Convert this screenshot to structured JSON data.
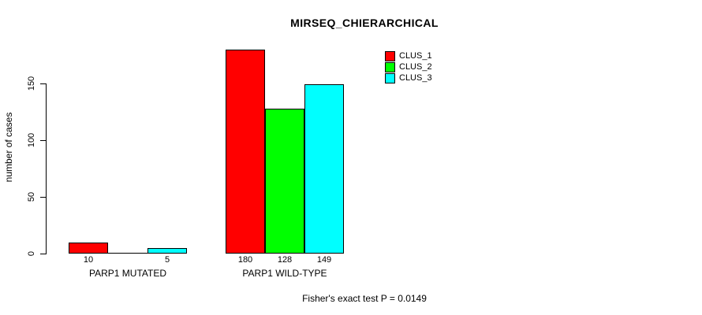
{
  "chart_data": {
    "type": "bar",
    "title": "MIRSEQ_CHIERARCHICAL",
    "xlabel": "",
    "ylabel": "number of cases",
    "categories": [
      "PARP1 MUTATED",
      "PARP1 WILD-TYPE"
    ],
    "series": [
      {
        "name": "CLUS_1",
        "color": "#ff0000",
        "values": [
          10,
          180
        ],
        "labels": [
          "10",
          "180"
        ]
      },
      {
        "name": "CLUS_2",
        "color": "#00ff00",
        "values": [
          0,
          128
        ],
        "labels": [
          "",
          "128"
        ]
      },
      {
        "name": "CLUS_3",
        "color": "#00ffff",
        "values": [
          5,
          149
        ],
        "labels": [
          "5",
          "149"
        ]
      }
    ],
    "yticks": [
      0,
      50,
      100,
      150
    ],
    "ylim": [
      0,
      150
    ],
    "grid": false,
    "legend_position": "top-right",
    "annotation": "Fisher's exact test P = 0.0149"
  },
  "colors": {
    "background": "#ffffff",
    "axis": "#000000",
    "bar_border": "#000000"
  }
}
